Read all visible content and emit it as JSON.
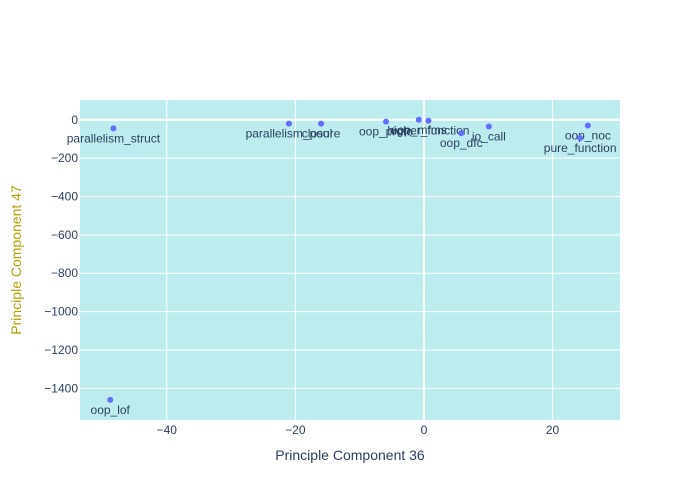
{
  "chart_data": {
    "type": "scatter",
    "title": "",
    "xlabel": "Principle Component 36",
    "ylabel": "Principle Component 47",
    "xlim": [
      -53.5,
      30.5
    ],
    "ylim": [
      -1565,
      103
    ],
    "x_ticks": [
      -40,
      -20,
      0,
      20
    ],
    "y_ticks": [
      0,
      -200,
      -400,
      -600,
      -800,
      -1000,
      -1200,
      -1400
    ],
    "grid": true,
    "colors": {
      "plot_bg": "#bcecee",
      "grid": "#ffffff",
      "marker": "#636efa",
      "text": "#2a3f5f",
      "y_title": "#b5a000"
    },
    "points": [
      {
        "label": "parallelism_struct",
        "x": -48.3,
        "y": -45
      },
      {
        "label": "parallelism_pool",
        "x": -21.0,
        "y": -20
      },
      {
        "label": "closure",
        "x": -16.0,
        "y": -20
      },
      {
        "label": "oop_proto",
        "x": -5.9,
        "y": -10
      },
      {
        "label": "oop_mfms",
        "x": -0.8,
        "y": 0
      },
      {
        "label": "higher_function",
        "x": 0.7,
        "y": -5
      },
      {
        "label": "oop_dfc",
        "x": 5.8,
        "y": -70
      },
      {
        "label": "io_call",
        "x": 10.1,
        "y": -35
      },
      {
        "label": "oop_noc",
        "x": 25.5,
        "y": -30
      },
      {
        "label": "pure_function",
        "x": 24.3,
        "y": -95
      },
      {
        "label": "oop_lof",
        "x": -48.8,
        "y": -1460
      }
    ]
  }
}
